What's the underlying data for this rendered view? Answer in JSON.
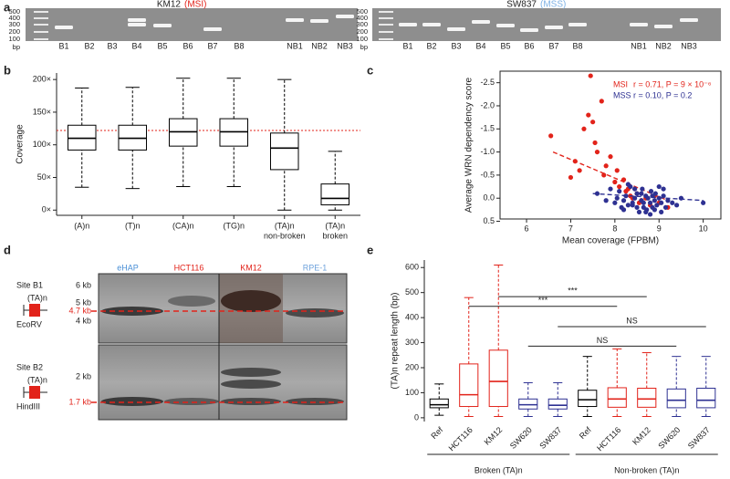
{
  "panel_labels": [
    "a",
    "b",
    "c",
    "d",
    "e"
  ],
  "gels": [
    {
      "title": "KM12",
      "subtitle": "(MSI)",
      "subtitle_color": "#e2231a",
      "ladder": [
        500,
        400,
        300,
        200,
        100
      ],
      "unit": "bp",
      "lanes": [
        "B1",
        "B2",
        "B3",
        "B4",
        "B5",
        "B6",
        "B7",
        "B8",
        "NB1",
        "NB2",
        "NB3"
      ]
    },
    {
      "title": "SW837",
      "subtitle": "(MSS)",
      "subtitle_color": "#7fb2e5",
      "ladder": [
        500,
        400,
        300,
        200,
        100
      ],
      "unit": "bp",
      "lanes": [
        "B1",
        "B2",
        "B3",
        "B4",
        "B5",
        "B6",
        "B7",
        "B8",
        "NB1",
        "NB2",
        "NB3"
      ]
    }
  ],
  "blot": {
    "lanes": [
      {
        "label": "eHAP",
        "color": "#4a8fd6"
      },
      {
        "label": "HCT116",
        "color": "#e2231a"
      },
      {
        "label": "KM12",
        "color": "#e2231a"
      },
      {
        "label": "RPE-1",
        "color": "#6fa3dc"
      }
    ],
    "top": {
      "site": "Site B1",
      "repeat": "(TA)n",
      "enzyme": "EcoRV",
      "markers": [
        "6 kb",
        "5 kb",
        "4 kb"
      ],
      "band": "4.7 kb"
    },
    "bottom": {
      "site": "Site B2",
      "repeat": "(TA)n",
      "enzyme": "HindIII",
      "markers": [
        "2 kb"
      ],
      "band": "1.7 kb"
    }
  },
  "chart_data": [
    {
      "type": "box",
      "ylabel": "Coverage",
      "color": "#000000",
      "categories": [
        [
          "(A)n"
        ],
        [
          "(T)n"
        ],
        [
          "(CA)n"
        ],
        [
          "(TG)n"
        ],
        [
          "(TA)n",
          "non-broken"
        ],
        [
          "(TA)n",
          "broken"
        ]
      ],
      "boxes": [
        {
          "whislo": 35,
          "q1": 92,
          "med": 110,
          "q3": 130,
          "whishi": 187
        },
        {
          "whislo": 33,
          "q1": 92,
          "med": 110,
          "q3": 130,
          "whishi": 188
        },
        {
          "whislo": 36,
          "q1": 98,
          "med": 120,
          "q3": 140,
          "whishi": 202
        },
        {
          "whislo": 36,
          "q1": 98,
          "med": 120,
          "q3": 140,
          "whishi": 202
        },
        {
          "whislo": 0,
          "q1": 62,
          "med": 95,
          "q3": 118,
          "whishi": 200
        },
        {
          "whislo": 0,
          "q1": 8,
          "med": 18,
          "q3": 40,
          "whishi": 90
        }
      ],
      "ylim": [
        -8,
        210
      ],
      "yticks": [
        {
          "value": 0,
          "label": "0×"
        },
        {
          "value": 50,
          "label": "50×"
        },
        {
          "value": 100,
          "label": "100×"
        },
        {
          "value": 150,
          "label": "150×"
        },
        {
          "value": 200,
          "label": "200×"
        }
      ],
      "reference_line": 122,
      "reference_color": "#e2231a",
      "rotate_labels": false
    },
    {
      "type": "scatter",
      "xlabel": "Mean coverage (FPBM)",
      "ylabel": "Average WRN dependency score",
      "xlim": [
        5.4,
        10.4
      ],
      "xticks": [
        6,
        7,
        8,
        9,
        10
      ],
      "ylim": [
        -2.75,
        0.45
      ],
      "y_inverted": true,
      "frame": true,
      "yticks": [
        -2.5,
        {
          "value": -2,
          "label": "-2.0"
        },
        -1.5,
        {
          "value": -1,
          "label": "-1.0"
        },
        -0.5,
        {
          "value": 0,
          "label": "0.0"
        },
        0.5
      ],
      "series": [
        {
          "name": "MSI",
          "stat": "r = 0.71, P = 9 × 10⁻⁶",
          "color": "#e2231a",
          "x": [
            6.55,
            7.0,
            7.1,
            7.2,
            7.3,
            7.4,
            7.45,
            7.5,
            7.55,
            7.6,
            7.7,
            7.75,
            7.8,
            7.9,
            8.0,
            8.05,
            8.1,
            8.2,
            8.25,
            8.3,
            8.35,
            8.4,
            8.5,
            8.55,
            8.6,
            8.7,
            8.8,
            8.9,
            9.0,
            9.2
          ],
          "values": [
            -1.35,
            -0.45,
            -0.8,
            -0.6,
            -1.5,
            -1.8,
            -2.65,
            -1.65,
            -1.2,
            -1.0,
            -2.1,
            -0.5,
            -0.7,
            -0.9,
            -0.35,
            -0.6,
            -0.25,
            -0.4,
            -0.15,
            -0.2,
            -0.05,
            0.0,
            -0.1,
            0.1,
            0.05,
            0.0,
            0.15,
            -0.05,
            0.1,
            0.2
          ],
          "fit": {
            "x": [
              6.6,
              9.2
            ],
            "values": [
              -1.0,
              0.05
            ]
          }
        },
        {
          "name": "MSS",
          "stat": "r = 0.10, P = 0.2",
          "color": "#2e3192",
          "x": [
            7.6,
            7.8,
            7.9,
            8.0,
            8.05,
            8.1,
            8.15,
            8.2,
            8.25,
            8.3,
            8.35,
            8.4,
            8.45,
            8.5,
            8.55,
            8.6,
            8.62,
            8.65,
            8.7,
            8.72,
            8.75,
            8.8,
            8.82,
            8.85,
            8.9,
            8.92,
            8.95,
            9.0,
            9.05,
            9.1,
            9.15,
            9.2,
            9.3,
            9.4,
            9.5,
            10.0,
            8.3,
            8.5,
            8.7,
            8.9,
            9.1,
            8.4,
            8.6,
            8.8,
            9.0,
            8.2,
            8.45,
            8.65,
            8.85,
            9.05
          ],
          "values": [
            -0.1,
            0.05,
            -0.2,
            0.1,
            0.0,
            -0.15,
            0.2,
            0.05,
            -0.05,
            0.15,
            -0.25,
            0.1,
            0.0,
            -0.1,
            0.3,
            0.05,
            -0.2,
            0.1,
            -0.05,
            0.25,
            0.0,
            0.1,
            -0.15,
            0.2,
            0.05,
            -0.1,
            0.15,
            0.0,
            0.1,
            -0.05,
            0.2,
            0.05,
            0.1,
            0.15,
            0.0,
            0.1,
            -0.3,
            0.2,
            0.3,
            0.25,
            -0.2,
            0.15,
            -0.1,
            0.35,
            -0.25,
            0.25,
            -0.2,
            0.2,
            -0.05,
            0.3
          ],
          "fit": {
            "x": [
              7.5,
              10.0
            ],
            "values": [
              -0.1,
              0.05
            ]
          }
        }
      ]
    },
    {
      "type": "box",
      "ylabel": "(TA)n repeat length (bp)",
      "rotate_labels": true,
      "categories": [
        "Ref",
        "HCT116",
        "KM12",
        "SW620",
        "SW837",
        "Ref",
        "HCT116",
        "KM12",
        "SW620",
        "SW837"
      ],
      "box_colors": [
        "#000000",
        "#e2231a",
        "#e2231a",
        "#2e3192",
        "#2e3192",
        "#000000",
        "#e2231a",
        "#e2231a",
        "#2e3192",
        "#2e3192"
      ],
      "boxes": [
        {
          "whislo": 10,
          "q1": 40,
          "med": 52,
          "q3": 75,
          "whishi": 135
        },
        {
          "whislo": 5,
          "q1": 45,
          "med": 92,
          "q3": 215,
          "whishi": 480
        },
        {
          "whislo": 5,
          "q1": 45,
          "med": 145,
          "q3": 270,
          "whishi": 610
        },
        {
          "whislo": 5,
          "q1": 35,
          "med": 52,
          "q3": 75,
          "whishi": 140
        },
        {
          "whislo": 5,
          "q1": 35,
          "med": 50,
          "q3": 75,
          "whishi": 140
        },
        {
          "whislo": 5,
          "q1": 45,
          "med": 72,
          "q3": 110,
          "whishi": 245
        },
        {
          "whislo": 5,
          "q1": 42,
          "med": 75,
          "q3": 120,
          "whishi": 275
        },
        {
          "whislo": 5,
          "q1": 42,
          "med": 75,
          "q3": 118,
          "whishi": 260
        },
        {
          "whislo": 5,
          "q1": 40,
          "med": 70,
          "q3": 115,
          "whishi": 245
        },
        {
          "whislo": 5,
          "q1": 40,
          "med": 70,
          "q3": 118,
          "whishi": 245
        }
      ],
      "ylim": [
        -15,
        630
      ],
      "yticks": [
        0,
        100,
        200,
        300,
        400,
        500,
        600
      ],
      "groups": [
        {
          "label": "Broken (TA)n",
          "from": 0,
          "to": 4
        },
        {
          "label": "Non-broken (TA)n",
          "from": 5,
          "to": 9
        }
      ],
      "brackets": [
        {
          "from": 2,
          "to": 7,
          "y": 484,
          "label": "***"
        },
        {
          "from": 1,
          "to": 6,
          "y": 445,
          "label": "***"
        },
        {
          "from": 4,
          "to": 9,
          "y": 364,
          "label": "NS"
        },
        {
          "from": 3,
          "to": 8,
          "y": 286,
          "label": "NS"
        }
      ]
    }
  ]
}
